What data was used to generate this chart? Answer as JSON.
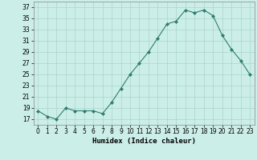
{
  "x": [
    0,
    1,
    2,
    3,
    4,
    5,
    6,
    7,
    8,
    9,
    10,
    11,
    12,
    13,
    14,
    15,
    16,
    17,
    18,
    19,
    20,
    21,
    22,
    23
  ],
  "y": [
    18.5,
    17.5,
    17.0,
    19.0,
    18.5,
    18.5,
    18.5,
    18.0,
    20.0,
    22.5,
    25.0,
    27.0,
    29.0,
    31.5,
    34.0,
    34.5,
    36.5,
    36.0,
    36.5,
    35.5,
    32.0,
    29.5,
    27.5,
    25.0
  ],
  "xlabel": "Humidex (Indice chaleur)",
  "ylim": [
    16,
    38
  ],
  "yticks": [
    17,
    19,
    21,
    23,
    25,
    27,
    29,
    31,
    33,
    35,
    37
  ],
  "xlim": [
    -0.5,
    23.5
  ],
  "xticks": [
    0,
    1,
    2,
    3,
    4,
    5,
    6,
    7,
    8,
    9,
    10,
    11,
    12,
    13,
    14,
    15,
    16,
    17,
    18,
    19,
    20,
    21,
    22,
    23
  ],
  "line_color": "#2e7d6e",
  "marker_color": "#2e7d6e",
  "bg_color": "#cceee8",
  "grid_color": "#aad4ce",
  "label_fontsize": 6.5,
  "tick_fontsize": 5.5
}
